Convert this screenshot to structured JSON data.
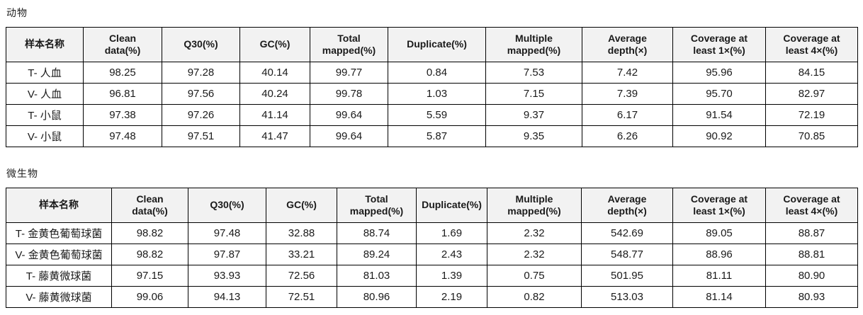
{
  "colors": {
    "header_background": "#f2f2f2",
    "table_border": "#000000",
    "text": "#1a1a1a"
  },
  "tables": [
    {
      "title": "动物",
      "columns": [
        "样本名称",
        "Clean\ndata(%)",
        "Q30(%)",
        "GC(%)",
        "Total\nmapped(%)",
        "Duplicate(%)",
        "Multiple\nmapped(%)",
        "Average\ndepth(×)",
        "Coverage at\nleast 1×(%)",
        "Coverage at\nleast 4×(%)"
      ],
      "rows": [
        [
          "T- 人血",
          "98.25",
          "97.28",
          "40.14",
          "99.77",
          "0.84",
          "7.53",
          "7.42",
          "95.96",
          "84.15"
        ],
        [
          "V- 人血",
          "96.81",
          "97.56",
          "40.24",
          "99.78",
          "1.03",
          "7.15",
          "7.39",
          "95.70",
          "82.97"
        ],
        [
          "T- 小鼠",
          "97.38",
          "97.26",
          "41.14",
          "99.64",
          "5.59",
          "9.37",
          "6.17",
          "91.54",
          "72.19"
        ],
        [
          "V- 小鼠",
          "97.48",
          "97.51",
          "41.47",
          "99.64",
          "5.87",
          "9.35",
          "6.26",
          "90.92",
          "70.85"
        ]
      ]
    },
    {
      "title": "微生物",
      "columns": [
        "样本名称",
        "Clean\ndata(%)",
        "Q30(%)",
        "GC(%)",
        "Total\nmapped(%)",
        "Duplicate(%)",
        "Multiple\nmapped(%)",
        "Average\ndepth(×)",
        "Coverage at\nleast 1×(%)",
        "Coverage at\nleast 4×(%)"
      ],
      "rows": [
        [
          "T- 金黄色葡萄球菌",
          "98.82",
          "97.48",
          "32.88",
          "88.74",
          "1.69",
          "2.32",
          "542.69",
          "89.05",
          "88.87"
        ],
        [
          "V- 金黄色葡萄球菌",
          "98.82",
          "97.87",
          "33.21",
          "89.24",
          "2.43",
          "2.32",
          "548.77",
          "88.96",
          "88.81"
        ],
        [
          "T- 藤黄微球菌",
          "97.15",
          "93.93",
          "72.56",
          "81.03",
          "1.39",
          "0.75",
          "501.95",
          "81.11",
          "80.90"
        ],
        [
          "V- 藤黄微球菌",
          "99.06",
          "94.13",
          "72.51",
          "80.96",
          "2.19",
          "0.82",
          "513.03",
          "81.14",
          "80.93"
        ]
      ]
    }
  ]
}
